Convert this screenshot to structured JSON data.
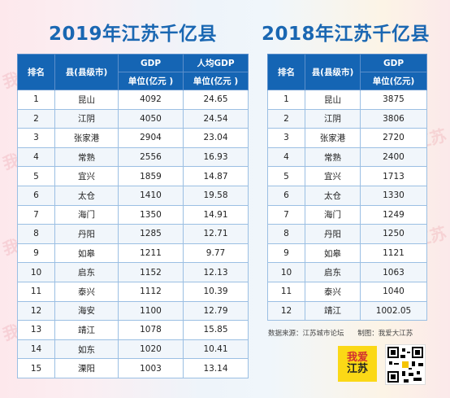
{
  "titles": {
    "left": "2019年江苏千亿县",
    "right": "2018年江苏千亿县"
  },
  "left_table": {
    "headers": {
      "rank": "排名",
      "county": "县(县级市)",
      "gdp": "GDP",
      "gdp_unit": "单位(亿元 )",
      "per_capita": "人均GDP",
      "per_capita_unit": "单位(亿元 )"
    },
    "rows": [
      [
        "1",
        "昆山",
        "4092",
        "24.65"
      ],
      [
        "2",
        "江阴",
        "4050",
        "24.54"
      ],
      [
        "3",
        "张家港",
        "2904",
        "23.04"
      ],
      [
        "4",
        "常熟",
        "2556",
        "16.93"
      ],
      [
        "5",
        "宜兴",
        "1859",
        "14.87"
      ],
      [
        "6",
        "太仓",
        "1410",
        "19.58"
      ],
      [
        "7",
        "海门",
        "1350",
        "14.91"
      ],
      [
        "8",
        "丹阳",
        "1285",
        "12.71"
      ],
      [
        "9",
        "如皋",
        "1211",
        "9.77"
      ],
      [
        "10",
        "启东",
        "1152",
        "12.13"
      ],
      [
        "11",
        "泰兴",
        "1112",
        "10.39"
      ],
      [
        "12",
        "海安",
        "1100",
        "12.79"
      ],
      [
        "13",
        "靖江",
        "1078",
        "15.85"
      ],
      [
        "14",
        "如东",
        "1020",
        "10.41"
      ],
      [
        "15",
        "溧阳",
        "1003",
        "13.14"
      ]
    ]
  },
  "right_table": {
    "headers": {
      "rank": "排名",
      "county": "县(县级市)",
      "gdp": "GDP",
      "gdp_unit": "单位(亿元)"
    },
    "rows": [
      [
        "1",
        "昆山",
        "3875"
      ],
      [
        "2",
        "江阴",
        "3806"
      ],
      [
        "3",
        "张家港",
        "2720"
      ],
      [
        "4",
        "常熟",
        "2400"
      ],
      [
        "5",
        "宜兴",
        "1713"
      ],
      [
        "6",
        "太仓",
        "1330"
      ],
      [
        "7",
        "海门",
        "1249"
      ],
      [
        "8",
        "丹阳",
        "1250"
      ],
      [
        "9",
        "如皋",
        "1121"
      ],
      [
        "10",
        "启东",
        "1063"
      ],
      [
        "11",
        "泰兴",
        "1040"
      ],
      [
        "12",
        "靖江",
        "1002.05"
      ]
    ]
  },
  "footer": {
    "source": "数据来源：江苏城市论坛",
    "credit": "制图：我爱大江苏"
  },
  "logo": {
    "line1": "我爱",
    "line2": "江苏",
    "bg_color": "#fbd816"
  },
  "watermark": "我爱江苏",
  "colors": {
    "title": "#1a67b2",
    "header_bg": "#1565b4",
    "border": "#9bbfe3"
  }
}
